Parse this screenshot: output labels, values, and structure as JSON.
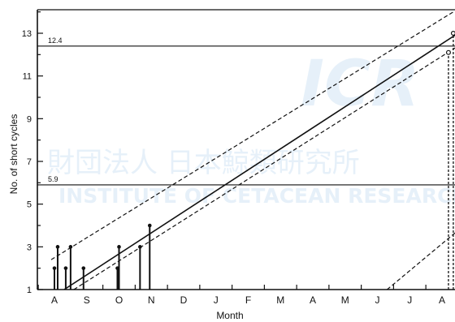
{
  "watermark": {
    "logo_text": "ICR",
    "jp_text": "財団法人 日本鯨類研究所",
    "en_text": "INSTITUTE OF CETACEAN RESEARCH",
    "color": "#b9d7ee"
  },
  "chart_data": {
    "type": "line",
    "xlabel": "Month",
    "ylabel": "No. of short cycles",
    "x_categories": [
      "A",
      "S",
      "O",
      "N",
      "D",
      "J",
      "F",
      "M",
      "A",
      "M",
      "J",
      "J",
      "A"
    ],
    "xlim": [
      0,
      12.5
    ],
    "ylim": [
      1,
      14
    ],
    "yticks": [
      1,
      3,
      5,
      7,
      9,
      11,
      13
    ],
    "reference_lines": [
      {
        "label": "12.4",
        "y": 12.4
      },
      {
        "label": "5.9",
        "y": 5.9
      }
    ],
    "regression_line": {
      "from": [
        0.3,
        1.0
      ],
      "to": [
        12.6,
        13.1
      ],
      "style": "solid"
    },
    "confidence_lines": [
      {
        "from": [
          -0.1,
          2.4
        ],
        "to": [
          12.35,
          14.0
        ],
        "style": "dashed"
      },
      {
        "from": [
          0.6,
          1.0
        ],
        "to": [
          12.6,
          12.5
        ],
        "style": "dashed"
      },
      {
        "from": [
          10.3,
          1.0
        ],
        "to": [
          12.6,
          3.9
        ],
        "style": "dashed"
      }
    ],
    "observations": [
      {
        "x": 0.0,
        "y": 2.0,
        "type": "filled"
      },
      {
        "x": 0.1,
        "y": 3.0,
        "type": "filled"
      },
      {
        "x": 0.35,
        "y": 2.0,
        "type": "filled"
      },
      {
        "x": 0.5,
        "y": 3.0,
        "type": "filled"
      },
      {
        "x": 0.9,
        "y": 2.0,
        "type": "filled"
      },
      {
        "x": 1.95,
        "y": 2.0,
        "type": "filled"
      },
      {
        "x": 2.0,
        "y": 3.0,
        "type": "filled"
      },
      {
        "x": 2.65,
        "y": 3.0,
        "type": "filled"
      },
      {
        "x": 2.95,
        "y": 4.0,
        "type": "filled"
      },
      {
        "x": 12.2,
        "y": 12.1,
        "type": "open"
      },
      {
        "x": 12.35,
        "y": 13.0,
        "type": "open"
      }
    ]
  }
}
